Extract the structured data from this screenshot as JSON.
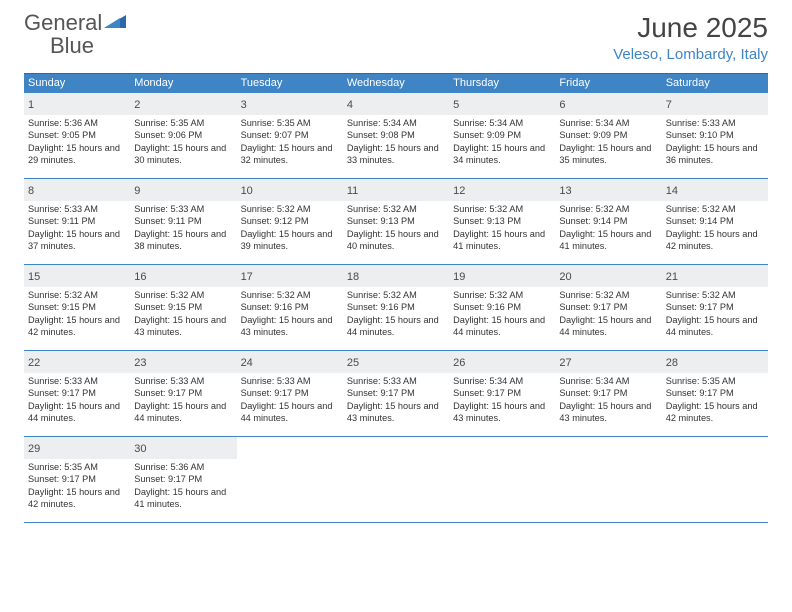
{
  "brand": {
    "part1": "General",
    "part2": "Blue"
  },
  "title": "June 2025",
  "location": "Veleso, Lombardy, Italy",
  "colors": {
    "header_bg": "#3f84c5",
    "row_divider": "#3f84c5",
    "daynum_bg": "#eceef0",
    "text": "#333333",
    "brand_gray": "#555555"
  },
  "dow": [
    "Sunday",
    "Monday",
    "Tuesday",
    "Wednesday",
    "Thursday",
    "Friday",
    "Saturday"
  ],
  "days": [
    {
      "n": "1",
      "sunrise": "5:36 AM",
      "sunset": "9:05 PM",
      "dl": "15 hours and 29 minutes."
    },
    {
      "n": "2",
      "sunrise": "5:35 AM",
      "sunset": "9:06 PM",
      "dl": "15 hours and 30 minutes."
    },
    {
      "n": "3",
      "sunrise": "5:35 AM",
      "sunset": "9:07 PM",
      "dl": "15 hours and 32 minutes."
    },
    {
      "n": "4",
      "sunrise": "5:34 AM",
      "sunset": "9:08 PM",
      "dl": "15 hours and 33 minutes."
    },
    {
      "n": "5",
      "sunrise": "5:34 AM",
      "sunset": "9:09 PM",
      "dl": "15 hours and 34 minutes."
    },
    {
      "n": "6",
      "sunrise": "5:34 AM",
      "sunset": "9:09 PM",
      "dl": "15 hours and 35 minutes."
    },
    {
      "n": "7",
      "sunrise": "5:33 AM",
      "sunset": "9:10 PM",
      "dl": "15 hours and 36 minutes."
    },
    {
      "n": "8",
      "sunrise": "5:33 AM",
      "sunset": "9:11 PM",
      "dl": "15 hours and 37 minutes."
    },
    {
      "n": "9",
      "sunrise": "5:33 AM",
      "sunset": "9:11 PM",
      "dl": "15 hours and 38 minutes."
    },
    {
      "n": "10",
      "sunrise": "5:32 AM",
      "sunset": "9:12 PM",
      "dl": "15 hours and 39 minutes."
    },
    {
      "n": "11",
      "sunrise": "5:32 AM",
      "sunset": "9:13 PM",
      "dl": "15 hours and 40 minutes."
    },
    {
      "n": "12",
      "sunrise": "5:32 AM",
      "sunset": "9:13 PM",
      "dl": "15 hours and 41 minutes."
    },
    {
      "n": "13",
      "sunrise": "5:32 AM",
      "sunset": "9:14 PM",
      "dl": "15 hours and 41 minutes."
    },
    {
      "n": "14",
      "sunrise": "5:32 AM",
      "sunset": "9:14 PM",
      "dl": "15 hours and 42 minutes."
    },
    {
      "n": "15",
      "sunrise": "5:32 AM",
      "sunset": "9:15 PM",
      "dl": "15 hours and 42 minutes."
    },
    {
      "n": "16",
      "sunrise": "5:32 AM",
      "sunset": "9:15 PM",
      "dl": "15 hours and 43 minutes."
    },
    {
      "n": "17",
      "sunrise": "5:32 AM",
      "sunset": "9:16 PM",
      "dl": "15 hours and 43 minutes."
    },
    {
      "n": "18",
      "sunrise": "5:32 AM",
      "sunset": "9:16 PM",
      "dl": "15 hours and 44 minutes."
    },
    {
      "n": "19",
      "sunrise": "5:32 AM",
      "sunset": "9:16 PM",
      "dl": "15 hours and 44 minutes."
    },
    {
      "n": "20",
      "sunrise": "5:32 AM",
      "sunset": "9:17 PM",
      "dl": "15 hours and 44 minutes."
    },
    {
      "n": "21",
      "sunrise": "5:32 AM",
      "sunset": "9:17 PM",
      "dl": "15 hours and 44 minutes."
    },
    {
      "n": "22",
      "sunrise": "5:33 AM",
      "sunset": "9:17 PM",
      "dl": "15 hours and 44 minutes."
    },
    {
      "n": "23",
      "sunrise": "5:33 AM",
      "sunset": "9:17 PM",
      "dl": "15 hours and 44 minutes."
    },
    {
      "n": "24",
      "sunrise": "5:33 AM",
      "sunset": "9:17 PM",
      "dl": "15 hours and 44 minutes."
    },
    {
      "n": "25",
      "sunrise": "5:33 AM",
      "sunset": "9:17 PM",
      "dl": "15 hours and 43 minutes."
    },
    {
      "n": "26",
      "sunrise": "5:34 AM",
      "sunset": "9:17 PM",
      "dl": "15 hours and 43 minutes."
    },
    {
      "n": "27",
      "sunrise": "5:34 AM",
      "sunset": "9:17 PM",
      "dl": "15 hours and 43 minutes."
    },
    {
      "n": "28",
      "sunrise": "5:35 AM",
      "sunset": "9:17 PM",
      "dl": "15 hours and 42 minutes."
    },
    {
      "n": "29",
      "sunrise": "5:35 AM",
      "sunset": "9:17 PM",
      "dl": "15 hours and 42 minutes."
    },
    {
      "n": "30",
      "sunrise": "5:36 AM",
      "sunset": "9:17 PM",
      "dl": "15 hours and 41 minutes."
    }
  ],
  "labels": {
    "sunrise": "Sunrise:",
    "sunset": "Sunset:",
    "daylight": "Daylight:"
  }
}
